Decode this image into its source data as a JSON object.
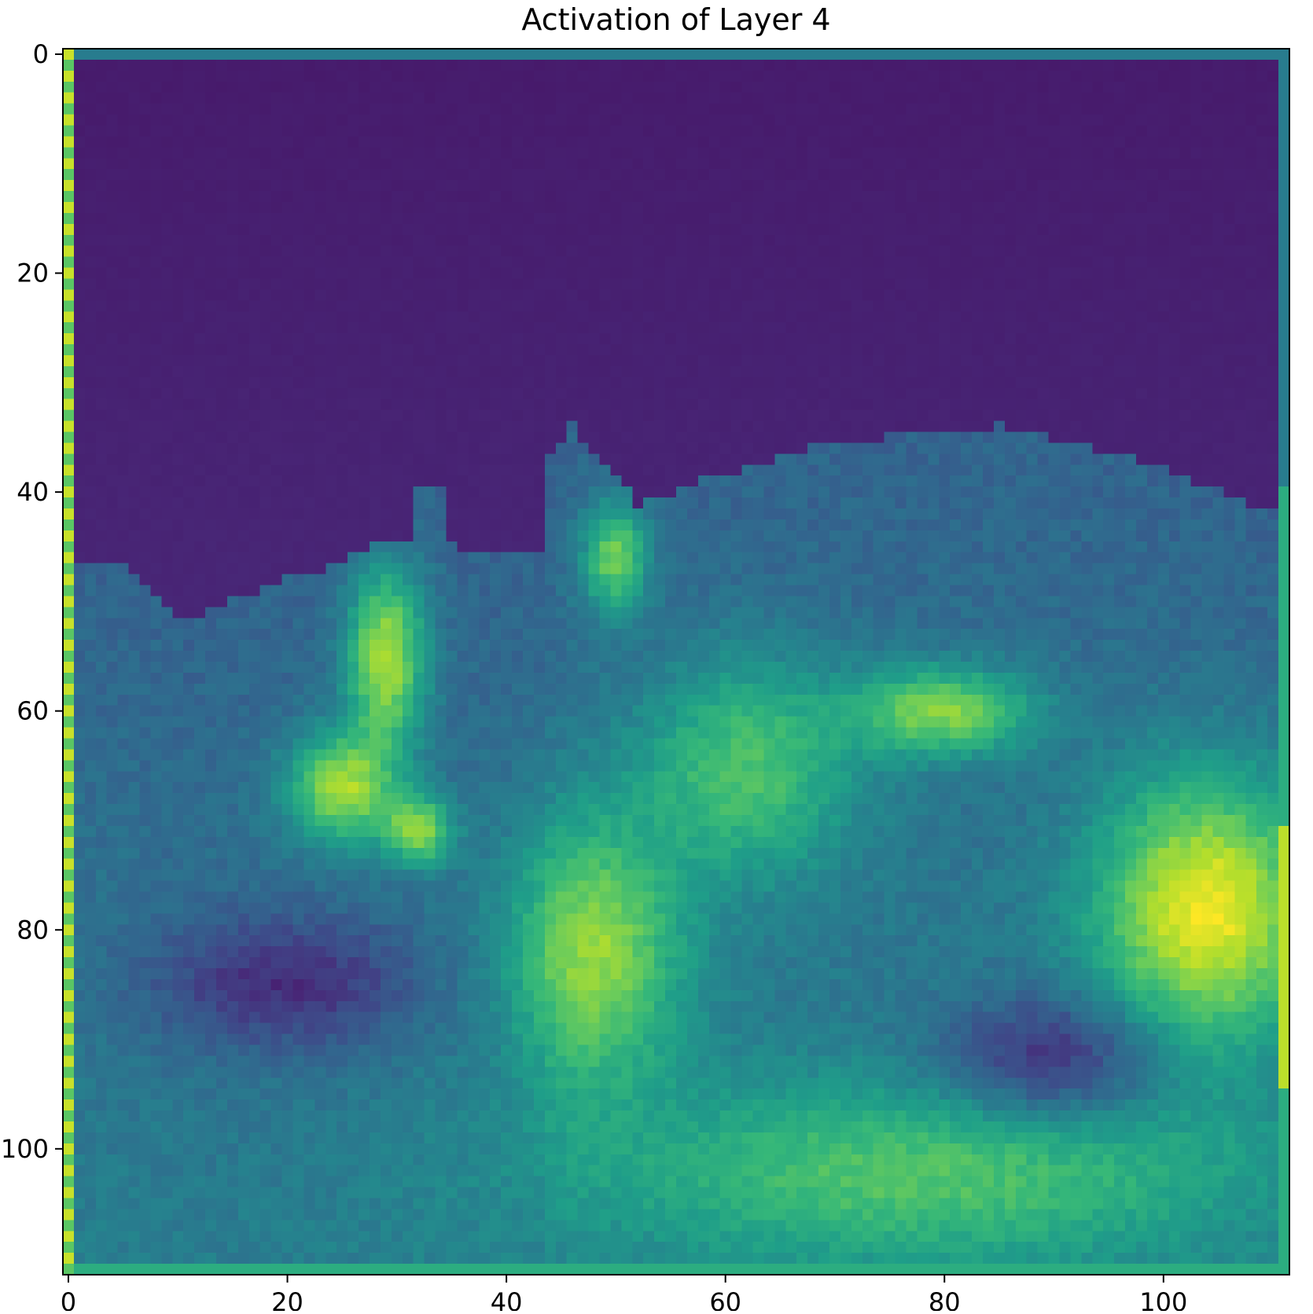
{
  "chart_data": {
    "type": "heatmap",
    "title": "Activation of Layer 4",
    "xlabel": "",
    "ylabel": "",
    "colormap": "viridis",
    "grid_size": [
      112,
      112
    ],
    "xlim": [
      -0.5,
      111.5
    ],
    "ylim": [
      111.5,
      -0.5
    ],
    "x_ticks": [
      0,
      20,
      40,
      60,
      80,
      100
    ],
    "y_ticks": [
      0,
      20,
      40,
      60,
      80,
      100
    ],
    "x_tick_labels": [
      "0",
      "20",
      "40",
      "60",
      "80",
      "100"
    ],
    "y_tick_labels": [
      "0",
      "20",
      "40",
      "60",
      "80",
      "100"
    ],
    "grid": false,
    "colors": {
      "low": "#440154",
      "mid": "#21918c",
      "high": "#fde725"
    }
  }
}
